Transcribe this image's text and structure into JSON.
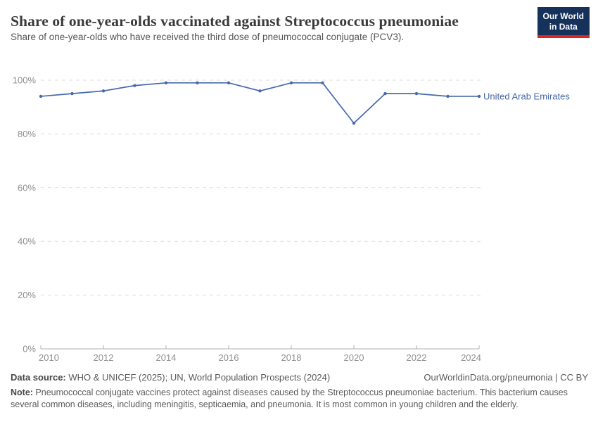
{
  "header": {
    "title": "Share of one-year-olds vaccinated against Streptococcus pneumoniae",
    "subtitle": "Share of one-year-olds who have received the third dose of pneumococcal conjugate (PCV3).",
    "logo_line1": "Our World",
    "logo_line2": "in Data",
    "logo_bg_color": "#16325a",
    "logo_accent_color": "#d72823"
  },
  "chart_data": {
    "type": "line",
    "title": "Share of one-year-olds vaccinated against Streptococcus pneumoniae",
    "x": [
      2010,
      2011,
      2012,
      2013,
      2014,
      2015,
      2016,
      2017,
      2018,
      2019,
      2020,
      2021,
      2022,
      2023,
      2024
    ],
    "series": [
      {
        "name": "United Arab Emirates",
        "color": "#4669aa",
        "values": [
          94,
          95,
          96,
          98,
          99,
          99,
          99,
          96,
          99,
          99,
          84,
          95,
          95,
          94,
          94
        ]
      }
    ],
    "xlim": [
      2010,
      2024
    ],
    "ylim": [
      0,
      100
    ],
    "x_ticks": [
      2010,
      2012,
      2014,
      2016,
      2018,
      2020,
      2022,
      2024
    ],
    "y_ticks": [
      0,
      20,
      40,
      60,
      80,
      100
    ],
    "y_tick_suffix": "%",
    "grid": "horizontal-dashed",
    "legend_position": "end-of-line",
    "xlabel": "",
    "ylabel": ""
  },
  "footer": {
    "source_label": "Data source:",
    "source_text": " WHO & UNICEF (2025); UN, World Population Prospects (2024)",
    "link": "OurWorldinData.org/pneumonia | CC BY",
    "note_label": "Note:",
    "note_text": " Pneumococcal conjugate vaccines protect against diseases caused by the Streptococcus pneumoniae bacterium. This bacterium causes several common diseases, including meningitis, septicaemia, and pneumonia. It is most common in young children and the elderly."
  }
}
